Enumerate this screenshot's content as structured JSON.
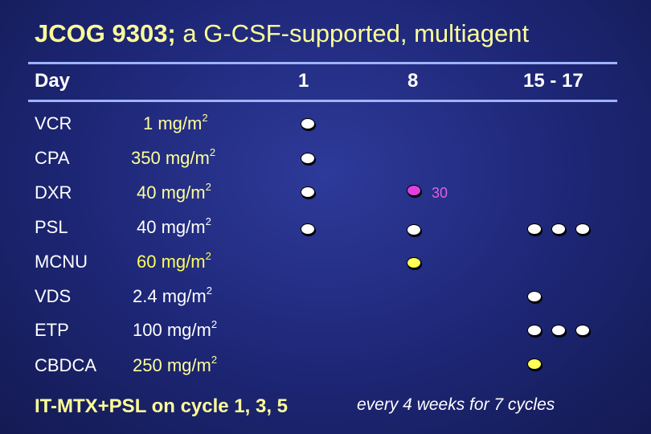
{
  "title": {
    "bold": "JCOG 9303;",
    "rest": " a G-CSF-supported, multiagent"
  },
  "header": {
    "day": "Day",
    "d1": "1",
    "d8": "8",
    "d15": "15 - 17"
  },
  "rows": [
    {
      "drug": "VCR",
      "dose": "1 mg/m",
      "sup": "2",
      "dose_color": "#ffff99"
    },
    {
      "drug": "CPA",
      "dose": "350 mg/m",
      "sup": "2",
      "dose_color": "#ffff99"
    },
    {
      "drug": "DXR",
      "dose": "40 mg/m",
      "sup": "2",
      "dose_color": "#ffff99"
    },
    {
      "drug": "PSL",
      "dose": "40 mg/m",
      "sup": "2",
      "dose_color": "#ffffff"
    },
    {
      "drug": "MCNU",
      "dose": "60 mg/m",
      "sup": "2",
      "dose_color": "#ffff55"
    },
    {
      "drug": "VDS",
      "dose": "2.4 mg/m",
      "sup": "2",
      "dose_color": "#ffffff"
    },
    {
      "drug": "ETP",
      "dose": "100 mg/m",
      "sup": "2",
      "dose_color": "#ffffff"
    },
    {
      "drug": "CBDCA",
      "dose": "250 mg/m",
      "sup": "2",
      "dose_color": "#ffff99"
    }
  ],
  "dxr_day8_note": "30",
  "footer": {
    "left": "IT-MTX+PSL on cycle 1, 3, 5",
    "right": "every 4 weeks for 7 cycles"
  },
  "colors": {
    "background": "#1d2675",
    "title": "#ffff99",
    "rule": "#9fb3ff",
    "dot_default": "#ffffff",
    "dot_dxr_day8": "#e040e0",
    "dot_mcnu_cbdca": "#ffff55"
  }
}
